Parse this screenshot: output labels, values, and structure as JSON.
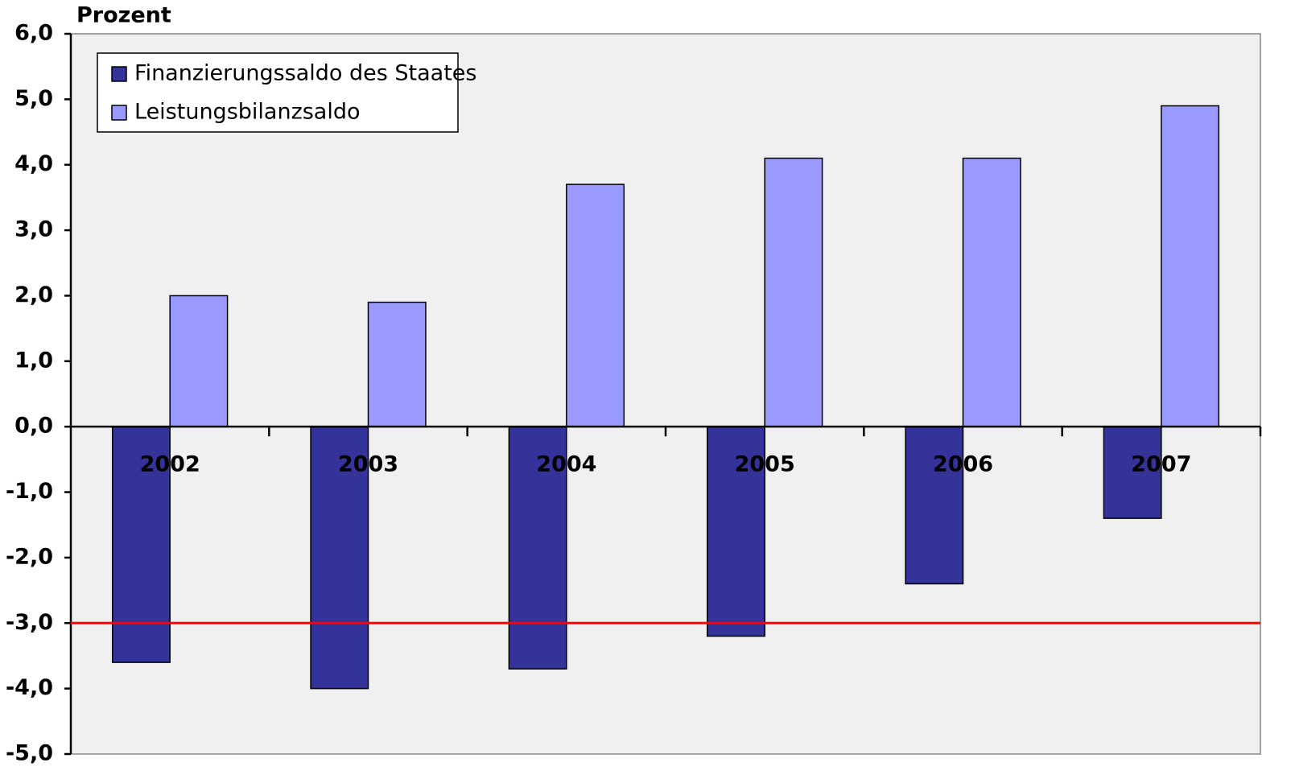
{
  "chart_data": {
    "type": "bar",
    "y_label": "Prozent",
    "categories": [
      "2002",
      "2003",
      "2004",
      "2005",
      "2006",
      "2007"
    ],
    "series": [
      {
        "name": "Finanzierungssaldo des Staates",
        "color": "#333399",
        "values": [
          -3.6,
          -4.0,
          -3.7,
          -3.2,
          -2.4,
          -1.4
        ]
      },
      {
        "name": "Leistungsbilanzsaldo",
        "color": "#9999ff",
        "values": [
          2.0,
          1.9,
          3.7,
          4.1,
          4.1,
          4.9
        ]
      }
    ],
    "ylim": [
      -5,
      6
    ],
    "yticks": [
      {
        "value": -5,
        "label": "-5,0"
      },
      {
        "value": -4,
        "label": "-4,0"
      },
      {
        "value": -3,
        "label": "-3,0"
      },
      {
        "value": -2,
        "label": "-2,0"
      },
      {
        "value": -1,
        "label": "-1,0"
      },
      {
        "value": 0,
        "label": "0,0"
      },
      {
        "value": 1,
        "label": "1,0"
      },
      {
        "value": 2,
        "label": "2,0"
      },
      {
        "value": 3,
        "label": "3,0"
      },
      {
        "value": 4,
        "label": "4,0"
      },
      {
        "value": 5,
        "label": "5,0"
      },
      {
        "value": 6,
        "label": "6,0"
      }
    ],
    "reference_line": {
      "value": -3,
      "color": "#ff0000"
    },
    "legend": "top-left"
  }
}
